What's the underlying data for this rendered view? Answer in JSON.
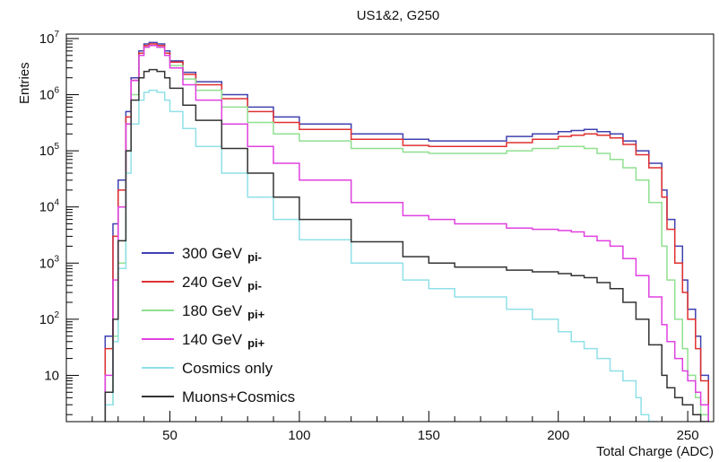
{
  "chart_data": {
    "type": "line",
    "title": "US1&2, G250",
    "xlabel": "Total Charge (ADC)",
    "ylabel": "Entries",
    "xlim": [
      10,
      260
    ],
    "ylim": [
      1.5,
      12000000
    ],
    "yscale": "log",
    "xticks": [
      50,
      100,
      150,
      200,
      250
    ],
    "xtick_labels": [
      "50",
      "100",
      "150",
      "200",
      "250"
    ],
    "yticks": [
      10,
      100,
      1000,
      10000,
      100000,
      1000000,
      10000000
    ],
    "ytick_labels": [
      {
        "base": "10",
        "exp": ""
      },
      {
        "base": "10",
        "exp": "2"
      },
      {
        "base": "10",
        "exp": "3"
      },
      {
        "base": "10",
        "exp": "4"
      },
      {
        "base": "10",
        "exp": "5"
      },
      {
        "base": "10",
        "exp": "6"
      },
      {
        "base": "10",
        "exp": "7"
      }
    ],
    "legend_position": "bottom-left",
    "grid": false,
    "series": [
      {
        "name": "300 GeV",
        "name_suffix": "pi-",
        "color": "#4040b0",
        "x": [
          20,
          25,
          28,
          30,
          33,
          35,
          38,
          40,
          42,
          45,
          48,
          50,
          55,
          60,
          70,
          80,
          90,
          100,
          120,
          140,
          150,
          160,
          180,
          190,
          200,
          205,
          210,
          215,
          220,
          225,
          230,
          235,
          240,
          242,
          245,
          248,
          250,
          253,
          255,
          258
        ],
        "y": [
          1,
          50,
          5000,
          30000,
          500000,
          2000000,
          6000000,
          8000000,
          8500000,
          8000000,
          6000000,
          4000000,
          2500000,
          1700000,
          1000000,
          600000,
          400000,
          300000,
          200000,
          160000,
          150000,
          150000,
          180000,
          200000,
          220000,
          230000,
          240000,
          220000,
          200000,
          150000,
          100000,
          60000,
          20000,
          6000,
          2000,
          500,
          150,
          50,
          10,
          1
        ]
      },
      {
        "name": "240 GeV",
        "name_suffix": "pi-",
        "color": "#e03030",
        "x": [
          20,
          25,
          28,
          30,
          33,
          35,
          38,
          40,
          42,
          45,
          48,
          50,
          55,
          60,
          70,
          80,
          90,
          100,
          120,
          140,
          150,
          160,
          180,
          190,
          200,
          205,
          210,
          215,
          220,
          225,
          230,
          235,
          240,
          242,
          245,
          248,
          250,
          253,
          255,
          258
        ],
        "y": [
          1,
          30,
          3000,
          20000,
          400000,
          1800000,
          5500000,
          7500000,
          8000000,
          7500000,
          5500000,
          3800000,
          2300000,
          1500000,
          850000,
          500000,
          320000,
          240000,
          160000,
          125000,
          120000,
          120000,
          140000,
          160000,
          180000,
          190000,
          200000,
          190000,
          170000,
          130000,
          85000,
          50000,
          15000,
          4000,
          1000,
          300,
          100,
          30,
          8,
          1
        ]
      },
      {
        "name": "180 GeV",
        "name_suffix": "pi+",
        "color": "#90e090",
        "x": [
          20,
          25,
          28,
          30,
          33,
          35,
          38,
          40,
          42,
          45,
          48,
          50,
          55,
          60,
          70,
          80,
          90,
          100,
          120,
          140,
          150,
          160,
          180,
          190,
          200,
          205,
          210,
          215,
          220,
          225,
          230,
          235,
          240,
          242,
          245,
          248,
          250,
          253,
          255,
          258
        ],
        "y": [
          1,
          3,
          50,
          1000,
          100000,
          1000000,
          5000000,
          7000000,
          7500000,
          7000000,
          5000000,
          3300000,
          1900000,
          1200000,
          600000,
          320000,
          200000,
          150000,
          110000,
          95000,
          90000,
          90000,
          100000,
          110000,
          120000,
          120000,
          110000,
          90000,
          70000,
          50000,
          30000,
          12000,
          2000,
          500,
          100,
          30,
          10,
          4,
          2,
          1
        ]
      },
      {
        "name": "140 GeV",
        "name_suffix": "pi+",
        "color": "#e040e0",
        "x": [
          20,
          25,
          28,
          30,
          33,
          35,
          38,
          40,
          42,
          45,
          48,
          50,
          55,
          60,
          70,
          80,
          90,
          100,
          120,
          140,
          150,
          160,
          180,
          190,
          200,
          205,
          210,
          215,
          220,
          225,
          230,
          235,
          240,
          242,
          245,
          248,
          250,
          253,
          255,
          258
        ],
        "y": [
          1,
          10,
          500,
          10000,
          300000,
          1800000,
          5000000,
          7000000,
          7500000,
          7000000,
          5000000,
          3000000,
          1500000,
          800000,
          300000,
          120000,
          60000,
          30000,
          12000,
          7000,
          6000,
          5000,
          4200,
          4000,
          3800,
          3600,
          3000,
          2500,
          2000,
          1200,
          600,
          250,
          80,
          40,
          20,
          12,
          8,
          5,
          3,
          1
        ]
      },
      {
        "name": "Cosmics only",
        "color": "#90e0e8",
        "x": [
          20,
          25,
          28,
          30,
          33,
          35,
          38,
          40,
          42,
          45,
          48,
          50,
          55,
          60,
          70,
          80,
          90,
          100,
          120,
          140,
          150,
          160,
          180,
          190,
          200,
          205,
          210,
          215,
          220,
          225,
          230,
          232,
          235,
          238
        ],
        "y": [
          1,
          3,
          40,
          800,
          40000,
          300000,
          800000,
          1100000,
          1200000,
          1100000,
          800000,
          500000,
          250000,
          120000,
          40000,
          15000,
          6000,
          2600,
          1000,
          500,
          350,
          250,
          150,
          100,
          60,
          40,
          30,
          20,
          12,
          8,
          4,
          2,
          1.5,
          1
        ]
      },
      {
        "name": "Muons+Cosmics",
        "color": "#333333",
        "x": [
          20,
          25,
          28,
          30,
          33,
          35,
          38,
          40,
          42,
          45,
          48,
          50,
          55,
          60,
          70,
          80,
          90,
          100,
          120,
          140,
          150,
          160,
          180,
          190,
          200,
          205,
          210,
          215,
          220,
          225,
          230,
          235,
          240,
          242,
          245,
          248,
          250,
          252,
          255,
          258
        ],
        "y": [
          1,
          5,
          100,
          2500,
          100000,
          800000,
          2000000,
          2600000,
          2800000,
          2600000,
          2000000,
          1300000,
          650000,
          350000,
          110000,
          40000,
          15000,
          6000,
          2400,
          1300,
          1000,
          850,
          750,
          700,
          650,
          600,
          550,
          450,
          350,
          200,
          100,
          35,
          10,
          6,
          4,
          3,
          3,
          2,
          1.5,
          1
        ]
      }
    ]
  }
}
